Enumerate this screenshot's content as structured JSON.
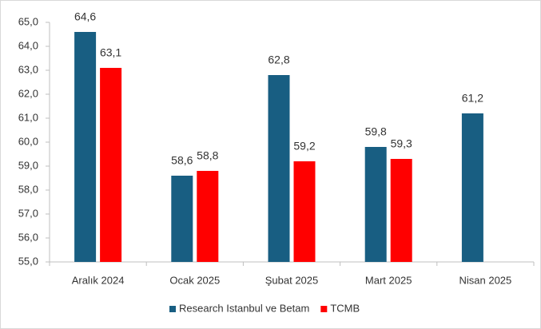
{
  "chart_data": {
    "type": "bar",
    "categories": [
      "Aralık 2024",
      "Ocak 2025",
      "Şubat 2025",
      "Mart 2025",
      "Nisan 2025"
    ],
    "series": [
      {
        "name": "Research Istanbul ve Betam",
        "color": "#185e82",
        "values": [
          64.6,
          58.6,
          62.8,
          59.8,
          61.2
        ],
        "value_labels": [
          "64,6",
          "58,6",
          "62,8",
          "59,8",
          "61,2"
        ]
      },
      {
        "name": "TCMB",
        "color": "#ff0000",
        "values": [
          63.1,
          58.8,
          59.2,
          59.3,
          null
        ],
        "value_labels": [
          "63,1",
          "58,8",
          "59,2",
          "59,3",
          null
        ]
      }
    ],
    "ylim": [
      55,
      65
    ],
    "yticks": [
      {
        "value": 55,
        "label": "55,0"
      },
      {
        "value": 56,
        "label": "56,0"
      },
      {
        "value": 57,
        "label": "57,0"
      },
      {
        "value": 58,
        "label": "58,0"
      },
      {
        "value": 59,
        "label": "59,0"
      },
      {
        "value": 60,
        "label": "60,0"
      },
      {
        "value": 61,
        "label": "61,0"
      },
      {
        "value": 62,
        "label": "62,0"
      },
      {
        "value": 63,
        "label": "63,0"
      },
      {
        "value": 64,
        "label": "64,0"
      },
      {
        "value": 65,
        "label": "65,0"
      }
    ],
    "grid": false,
    "legend": "bottom"
  }
}
